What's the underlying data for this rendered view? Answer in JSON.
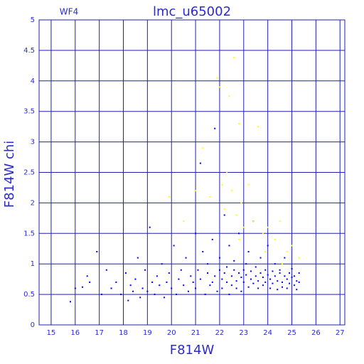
{
  "chart_data": {
    "type": "scatter",
    "title": "lmc_u65002",
    "subtitle": "WF4",
    "x_label": "F814W",
    "y_label": "F814W chi",
    "xlim": [
      14.5,
      27.2
    ],
    "ylim": [
      0,
      5
    ],
    "xticks": [
      15,
      16,
      17,
      18,
      19,
      20,
      21,
      22,
      23,
      24,
      25,
      26,
      27
    ],
    "yticks": [
      0,
      0.5,
      1,
      1.5,
      2,
      2.5,
      3,
      3.5,
      4,
      4.5,
      5
    ],
    "grid": true,
    "grid_color": "#2020b0",
    "series": [
      {
        "color": "#0000ff",
        "x": [
          15.8,
          16.0,
          16.3,
          16.5,
          16.6,
          16.9,
          17.1,
          17.3,
          17.5,
          17.7,
          17.9,
          18.1,
          18.2,
          18.3,
          18.4,
          18.5,
          18.6,
          18.7,
          18.8,
          18.9,
          19.0,
          19.1,
          19.2,
          19.3,
          19.4,
          19.5,
          19.6,
          19.7,
          19.8,
          19.9,
          20.0,
          20.1,
          20.2,
          20.3,
          20.4,
          20.5,
          20.6,
          20.7,
          20.8,
          20.9,
          21.0,
          21.0,
          21.1,
          21.2,
          21.2,
          21.3,
          21.4,
          21.5,
          21.5,
          21.6,
          21.7,
          21.7,
          21.8,
          21.8,
          21.9,
          22.0,
          22.0,
          22.1,
          22.1,
          22.2,
          22.2,
          22.3,
          22.3,
          22.4,
          22.4,
          22.5,
          22.5,
          22.6,
          22.6,
          22.7,
          22.7,
          22.8,
          22.8,
          22.9,
          22.9,
          23.0,
          23.0,
          23.1,
          23.1,
          23.2,
          23.2,
          23.3,
          23.3,
          23.4,
          23.4,
          23.5,
          23.5,
          23.6,
          23.6,
          23.7,
          23.7,
          23.8,
          23.8,
          23.9,
          23.9,
          24.0,
          24.0,
          24.1,
          24.1,
          24.2,
          24.2,
          24.3,
          24.3,
          24.4,
          24.4,
          24.5,
          24.5,
          24.6,
          24.6,
          24.7,
          24.7,
          24.8,
          24.8,
          24.9,
          24.9,
          25.0,
          25.0,
          25.1,
          25.1,
          25.2,
          25.2,
          25.3,
          25.3
        ],
        "values": [
          0.38,
          0.6,
          0.62,
          0.8,
          0.7,
          1.2,
          0.5,
          0.9,
          0.6,
          0.7,
          0.5,
          0.85,
          0.4,
          0.65,
          0.55,
          0.75,
          1.1,
          0.45,
          0.6,
          0.9,
          0.55,
          1.6,
          0.7,
          0.5,
          0.8,
          0.65,
          1.0,
          0.45,
          0.7,
          0.85,
          0.6,
          1.3,
          0.5,
          0.75,
          0.9,
          0.65,
          1.1,
          0.55,
          0.8,
          0.7,
          1.5,
          0.6,
          0.9,
          2.65,
          0.75,
          1.2,
          0.5,
          0.85,
          1.0,
          0.65,
          0.7,
          1.4,
          3.22,
          0.8,
          0.55,
          0.9,
          1.1,
          0.6,
          0.75,
          1.8,
          0.85,
          0.7,
          0.95,
          0.5,
          1.3,
          0.8,
          0.65,
          0.9,
          1.05,
          0.72,
          0.6,
          0.85,
          1.5,
          0.78,
          0.55,
          0.9,
          0.7,
          1.0,
          0.82,
          0.62,
          1.2,
          0.75,
          0.88,
          0.68,
          1.7,
          0.8,
          0.95,
          0.6,
          0.72,
          0.85,
          1.1,
          0.78,
          0.65,
          0.9,
          0.7,
          0.82,
          1.3,
          0.6,
          0.75,
          0.88,
          0.68,
          0.8,
          1.0,
          0.72,
          0.58,
          0.85,
          0.9,
          0.7,
          0.62,
          0.8,
          1.1,
          0.75,
          0.6,
          0.85,
          0.68,
          0.78,
          0.92,
          0.65,
          0.8,
          0.72,
          0.58,
          0.7,
          0.85
        ]
      },
      {
        "color": "#ffff00",
        "x": [
          19.9,
          20.5,
          21.3,
          21.6,
          21.9,
          22.0,
          22.1,
          22.2,
          22.3,
          22.4,
          22.5,
          22.6,
          22.7,
          22.8,
          22.9,
          23.0,
          23.2,
          23.4,
          23.6,
          23.8,
          24.0,
          24.3,
          24.5,
          24.8,
          25.0,
          25.3,
          21.0,
          22.8,
          23.9,
          24.6
        ],
        "values": [
          2.1,
          1.7,
          2.9,
          2.1,
          4.05,
          3.9,
          2.3,
          1.9,
          2.5,
          3.75,
          2.2,
          4.38,
          1.8,
          3.3,
          2.0,
          1.6,
          2.3,
          1.7,
          3.25,
          1.5,
          1.6,
          1.4,
          1.7,
          1.2,
          1.3,
          1.1,
          2.2,
          1.4,
          1.2,
          1.0
        ]
      }
    ]
  }
}
